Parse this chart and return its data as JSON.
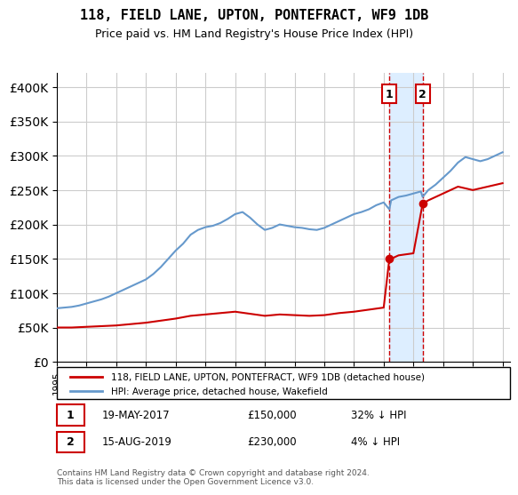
{
  "title": "118, FIELD LANE, UPTON, PONTEFRACT, WF9 1DB",
  "subtitle": "Price paid vs. HM Land Registry's House Price Index (HPI)",
  "legend_line1": "118, FIELD LANE, UPTON, PONTEFRACT, WF9 1DB (detached house)",
  "legend_line2": "HPI: Average price, detached house, Wakefield",
  "footnote": "Contains HM Land Registry data © Crown copyright and database right 2024.\nThis data is licensed under the Open Government Licence v3.0.",
  "sale1_label": "1",
  "sale1_date": "19-MAY-2017",
  "sale1_price": 150000,
  "sale1_hpi_rel": "32% ↓ HPI",
  "sale2_label": "2",
  "sale2_date": "15-AUG-2019",
  "sale2_price": 230000,
  "sale2_hpi_rel": "4% ↓ HPI",
  "sale1_year": 2017.38,
  "sale2_year": 2019.62,
  "red_color": "#cc0000",
  "blue_color": "#6699cc",
  "shade_color": "#ddeeff",
  "grid_color": "#cccccc",
  "ylim": [
    0,
    420000
  ],
  "xlim_start": 1995,
  "xlim_end": 2025.5
}
